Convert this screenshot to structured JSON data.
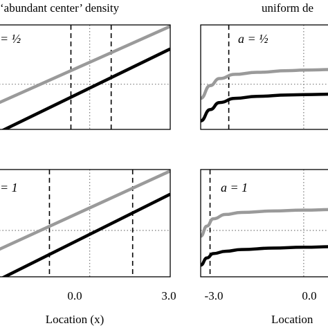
{
  "headers": {
    "left": "‘abundant center’ density",
    "right": "uniform de"
  },
  "panels": [
    {
      "label": "= ½"
    },
    {
      "label": "a = ½"
    },
    {
      "label": "= 1"
    },
    {
      "label": "a = 1"
    }
  ],
  "axes": {
    "left_ticks": [
      "0.0",
      "3.0"
    ],
    "right_ticks": [
      "-3.0",
      "0.0"
    ],
    "left_xlabel": "Location (x)",
    "right_xlabel": "Location"
  },
  "colors": {
    "gray_series": "#9a9a9a",
    "black_series": "#000000",
    "dotted": "#777777"
  },
  "chart_data": [
    {
      "type": "line",
      "panel": "top-left",
      "title": "‘abundant center’ density",
      "annotation": "= ½",
      "xlim": [
        -3.6,
        3.0
      ],
      "ylim": [
        -1.6,
        2.1
      ],
      "xlabel": "",
      "series": [
        {
          "x": [
            -3.6,
            3.0
          ],
          "y": [
            -0.75,
            2.05
          ]
        },
        {
          "x": [
            -3.6,
            3.0
          ],
          "y": [
            -1.8,
            1.25
          ]
        }
      ],
      "vlines_dashed": [
        -0.7,
        0.8
      ],
      "vline_dotted": 0.0,
      "hline_dotted": 0.0
    },
    {
      "type": "line",
      "panel": "top-right",
      "title": "uniform de",
      "annotation": "a = ½",
      "xlim": [
        -3.3,
        1.0
      ],
      "ylim": [
        -1.6,
        2.1
      ],
      "series": [
        {
          "x": [
            -3.3,
            -3.0,
            -2.7,
            -2.2,
            -1.5,
            -0.5,
            0.0,
            1.0
          ],
          "y": [
            -0.5,
            -0.05,
            0.2,
            0.35,
            0.42,
            0.48,
            0.5,
            0.52
          ]
        },
        {
          "x": [
            -3.3,
            -3.0,
            -2.7,
            -2.2,
            -1.5,
            -0.5,
            0.0,
            1.0
          ],
          "y": [
            -1.3,
            -0.9,
            -0.65,
            -0.5,
            -0.43,
            -0.38,
            -0.37,
            -0.35
          ]
        }
      ],
      "vlines_dashed": [
        -2.4
      ],
      "vline_dotted": 0.0,
      "hline_dotted": 0.0
    },
    {
      "type": "line",
      "panel": "bottom-left",
      "annotation": "= 1",
      "xlim": [
        -3.6,
        3.0
      ],
      "ylim": [
        -1.6,
        2.1
      ],
      "xlabel": "Location (x)",
      "series": [
        {
          "x": [
            -3.6,
            3.0
          ],
          "y": [
            -0.75,
            2.05
          ]
        },
        {
          "x": [
            -3.6,
            3.0
          ],
          "y": [
            -1.8,
            1.25
          ]
        }
      ],
      "vlines_dashed": [
        -1.5,
        1.6
      ],
      "vline_dotted": 0.0,
      "hline_dotted": 0.0
    },
    {
      "type": "line",
      "panel": "bottom-right",
      "annotation": "a = 1",
      "xlim": [
        -3.3,
        1.0
      ],
      "ylim": [
        -1.6,
        2.1
      ],
      "xlabel": "Location",
      "series": [
        {
          "x": [
            -3.3,
            -3.1,
            -2.9,
            -2.5,
            -2.0,
            -1.0,
            0.0,
            1.0
          ],
          "y": [
            -0.2,
            0.15,
            0.4,
            0.55,
            0.62,
            0.67,
            0.7,
            0.72
          ]
        },
        {
          "x": [
            -3.3,
            -3.1,
            -2.9,
            -2.5,
            -2.0,
            -1.0,
            0.0,
            1.0
          ],
          "y": [
            -1.2,
            -0.95,
            -0.8,
            -0.72,
            -0.66,
            -0.61,
            -0.58,
            -0.56
          ]
        }
      ],
      "vlines_dashed": [
        -3.0
      ],
      "vline_dotted": 0.0,
      "hline_dotted": 0.0
    }
  ]
}
